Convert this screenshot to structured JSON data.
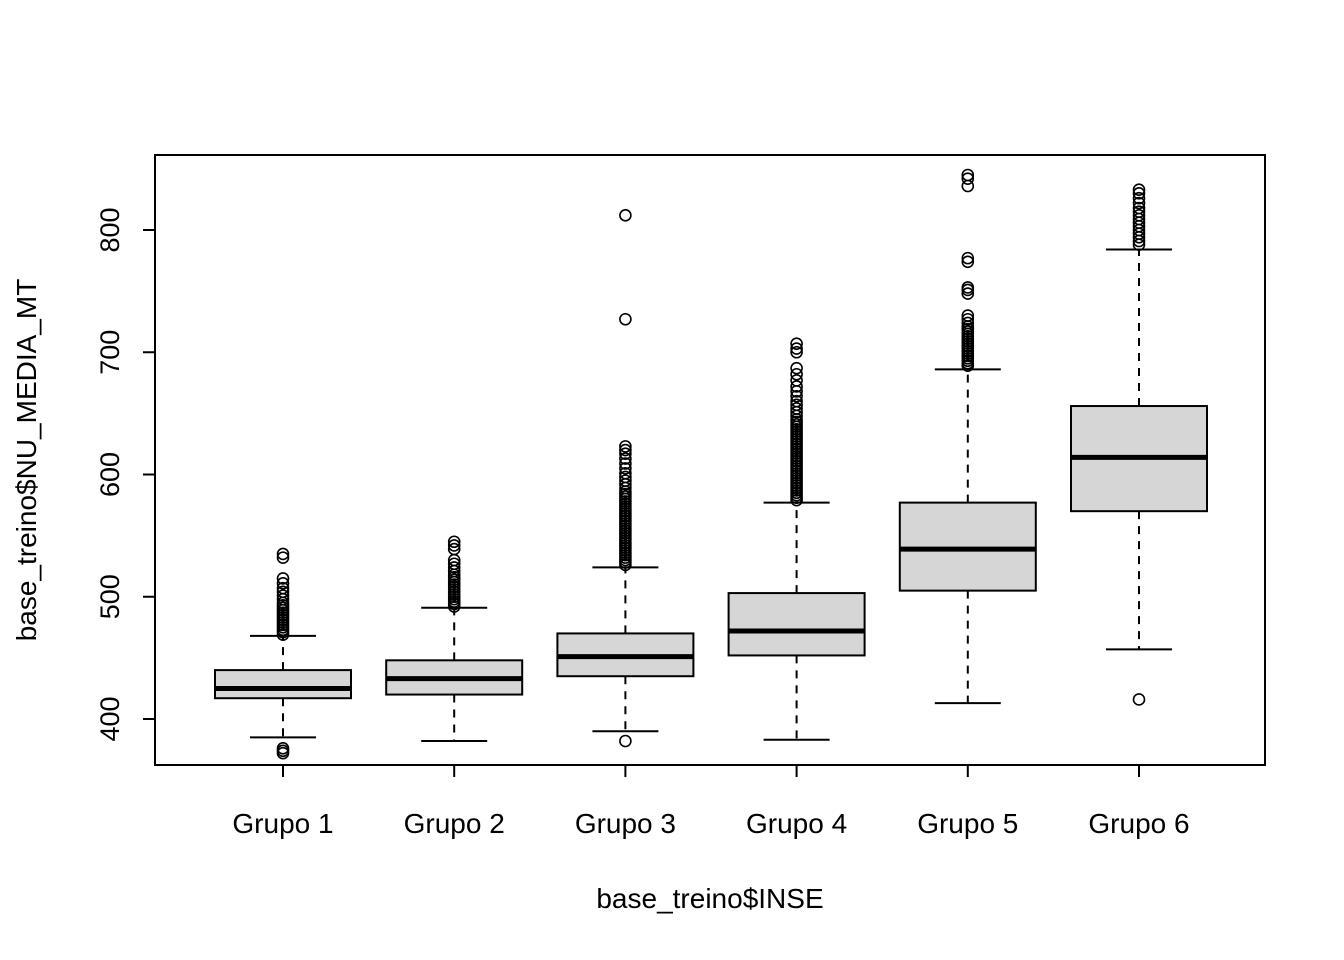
{
  "chart_data": {
    "type": "boxplot",
    "title": "",
    "xlabel": "base_treino$INSE",
    "ylabel": "base_treino$NU_MEDIA_MT",
    "categories": [
      "Grupo 1",
      "Grupo 2",
      "Grupo 3",
      "Grupo 4",
      "Grupo 5",
      "Grupo 6"
    ],
    "y_ticks": [
      400,
      500,
      600,
      700,
      800
    ],
    "ylim": [
      365,
      860
    ],
    "grid": false,
    "legend": "none",
    "style": {
      "box_fill": "#d6d6d6",
      "line_color": "#000000",
      "background": "#ffffff"
    },
    "series": [
      {
        "name": "Grupo 1",
        "whisker_low": 385,
        "q1": 417,
        "median": 425,
        "q3": 440,
        "whisker_high": 468,
        "outliers": [
          372,
          374,
          376,
          469,
          471,
          473,
          475,
          477,
          479,
          481,
          483,
          485,
          487,
          489,
          491,
          493,
          495,
          498,
          501,
          504,
          507,
          511,
          515,
          532,
          535
        ]
      },
      {
        "name": "Grupo 2",
        "whisker_low": 382,
        "q1": 420,
        "median": 433,
        "q3": 448,
        "whisker_high": 491,
        "outliers": [
          492,
          494,
          496,
          498,
          500,
          502,
          504,
          506,
          508,
          510,
          512,
          514,
          516,
          518,
          521,
          524,
          527,
          530,
          539,
          542,
          545
        ]
      },
      {
        "name": "Grupo 3",
        "whisker_low": 390,
        "q1": 435,
        "median": 451,
        "q3": 470,
        "whisker_high": 524,
        "outliers": [
          382,
          526,
          528,
          530,
          532,
          534,
          536,
          538,
          540,
          542,
          544,
          546,
          548,
          550,
          552,
          554,
          556,
          558,
          560,
          562,
          564,
          566,
          568,
          570,
          572,
          574,
          576,
          578,
          580,
          582,
          584,
          586,
          589,
          592,
          595,
          598,
          601,
          605,
          609,
          613,
          617,
          620,
          623,
          727,
          812
        ]
      },
      {
        "name": "Grupo 4",
        "whisker_low": 383,
        "q1": 452,
        "median": 472,
        "q3": 503,
        "whisker_high": 577,
        "outliers": [
          579,
          581,
          583,
          585,
          587,
          589,
          591,
          593,
          595,
          597,
          599,
          601,
          603,
          605,
          607,
          609,
          611,
          613,
          615,
          617,
          619,
          621,
          623,
          625,
          627,
          629,
          631,
          633,
          635,
          637,
          639,
          641,
          643,
          645,
          648,
          651,
          654,
          657,
          660,
          664,
          668,
          672,
          677,
          682,
          687,
          700,
          703,
          707
        ]
      },
      {
        "name": "Grupo 5",
        "whisker_low": 413,
        "q1": 505,
        "median": 539,
        "q3": 577,
        "whisker_high": 686,
        "outliers": [
          689,
          691,
          693,
          695,
          697,
          699,
          701,
          703,
          705,
          707,
          709,
          711,
          713,
          715,
          717,
          719,
          721,
          724,
          727,
          730,
          748,
          751,
          753,
          774,
          777,
          836,
          842,
          845
        ]
      },
      {
        "name": "Grupo 6",
        "whisker_low": 457,
        "q1": 570,
        "median": 614,
        "q3": 656,
        "whisker_high": 784,
        "outliers": [
          416,
          788,
          791,
          794,
          797,
          800,
          803,
          806,
          809,
          812,
          815,
          818,
          822,
          826,
          830,
          833
        ]
      }
    ]
  }
}
